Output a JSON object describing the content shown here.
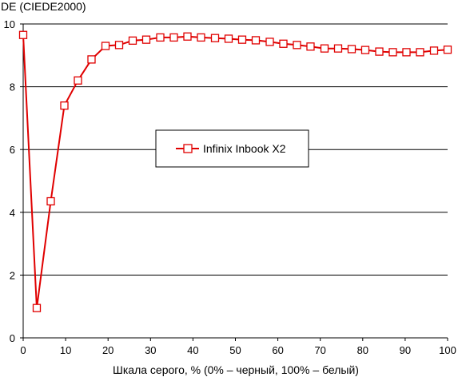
{
  "chart_data": {
    "type": "line",
    "title": "",
    "ylabel": "DE (CIEDE2000)",
    "xlabel": "Шкала серого, % (0% – черный, 100% – белый)",
    "xlim": [
      0,
      100
    ],
    "ylim": [
      0,
      10
    ],
    "x_ticks": [
      0,
      10,
      20,
      30,
      40,
      50,
      60,
      70,
      80,
      90,
      100
    ],
    "y_ticks": [
      0,
      2,
      4,
      6,
      8,
      10
    ],
    "grid": "horizontal",
    "legend_position": "center",
    "series": [
      {
        "name": "Infinix Inbook X2",
        "color": "#e00000",
        "marker": "open-square",
        "x": [
          0,
          3.2,
          6.5,
          9.7,
          12.9,
          16.1,
          19.4,
          22.6,
          25.8,
          29.0,
          32.3,
          35.5,
          38.7,
          41.9,
          45.2,
          48.4,
          51.6,
          54.8,
          58.1,
          61.3,
          64.5,
          67.7,
          71.0,
          74.2,
          77.4,
          80.6,
          83.9,
          87.1,
          90.3,
          93.5,
          96.8,
          100
        ],
        "y": [
          9.65,
          0.95,
          4.35,
          7.4,
          8.2,
          8.87,
          9.3,
          9.33,
          9.47,
          9.5,
          9.57,
          9.57,
          9.6,
          9.57,
          9.55,
          9.53,
          9.5,
          9.48,
          9.43,
          9.37,
          9.33,
          9.28,
          9.22,
          9.22,
          9.2,
          9.17,
          9.12,
          9.1,
          9.1,
          9.1,
          9.15,
          9.18
        ]
      }
    ]
  }
}
